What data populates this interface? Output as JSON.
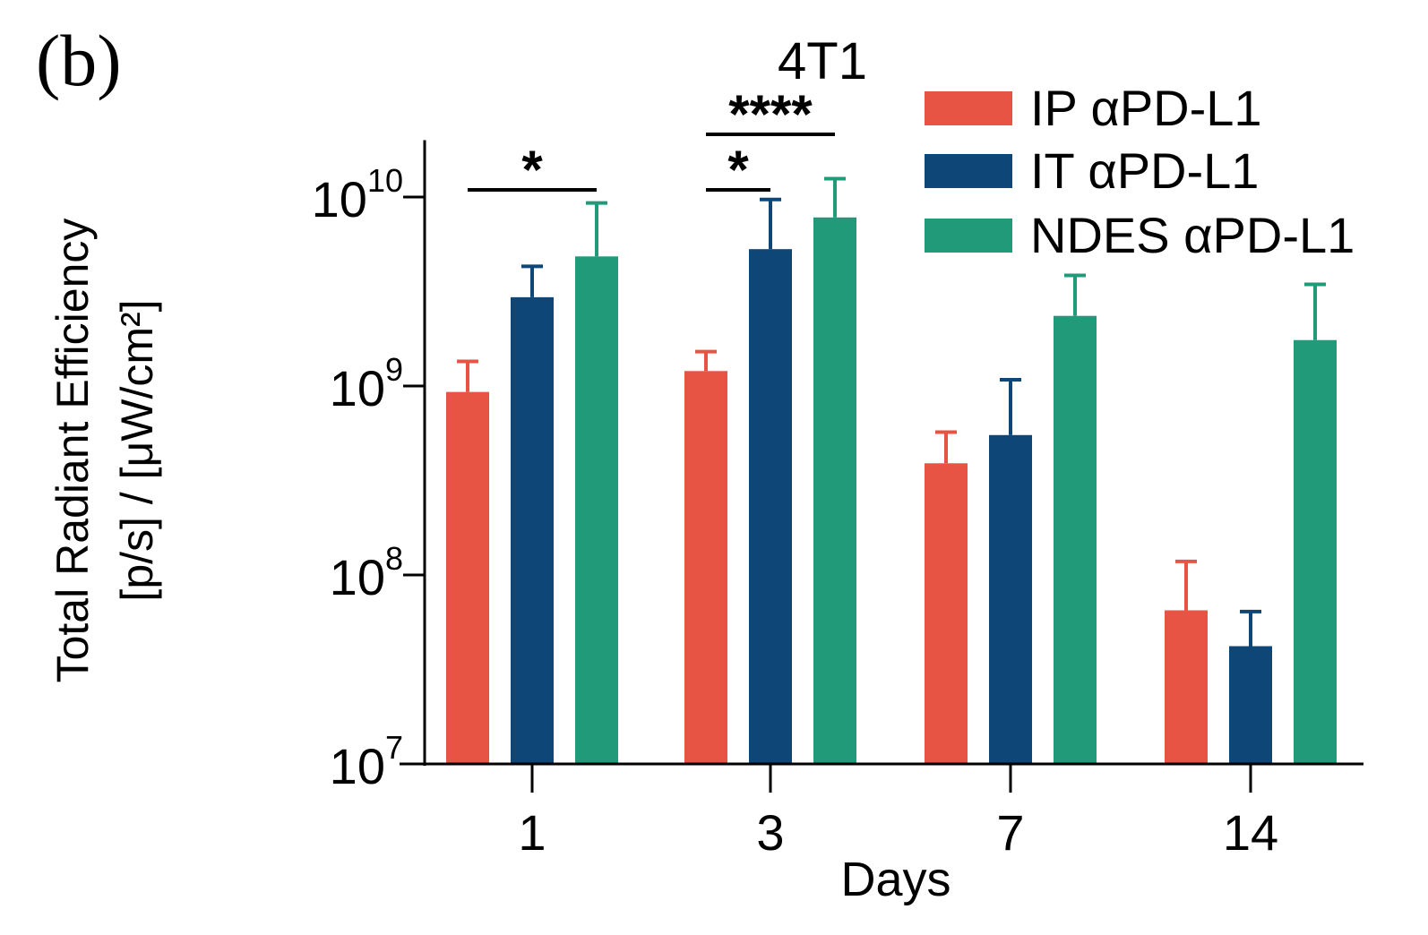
{
  "panel_label": "(b)",
  "chart_data": {
    "type": "bar",
    "title": "4T1",
    "xlabel": "Days",
    "ylabel_line1": "Total Radiant Efficiency",
    "ylabel_line2": "[p/s] / [μW/cm²]",
    "yscale": "log",
    "ylim": [
      10000000,
      20000000000
    ],
    "y_ticks": [
      {
        "value": 10000000,
        "base": "10",
        "exp": "7"
      },
      {
        "value": 100000000,
        "base": "10",
        "exp": "8"
      },
      {
        "value": 1000000000,
        "base": "10",
        "exp": "9"
      },
      {
        "value": 10000000000,
        "base": "10",
        "exp": "10"
      }
    ],
    "categories": [
      "1",
      "3",
      "7",
      "14"
    ],
    "series": [
      {
        "name": "IP αPD-L1",
        "color": "#e85443",
        "values": [
          930000000,
          1200000000,
          390000000,
          65000000
        ],
        "error_upper": [
          1350000000,
          1520000000,
          570000000,
          118000000
        ]
      },
      {
        "name": "IT αPD-L1",
        "color": "#0e4678",
        "values": [
          2950000000,
          5300000000,
          550000000,
          42000000
        ],
        "error_upper": [
          4300000000,
          9700000000,
          1080000000,
          64000000
        ]
      },
      {
        "name": "NDES αPD-L1",
        "color": "#219a7a",
        "values": [
          4850000000,
          7800000000,
          2350000000,
          1750000000
        ],
        "error_upper": [
          9300000000,
          12500000000,
          3850000000,
          3450000000
        ]
      }
    ],
    "legend_position": "top-right",
    "significance": [
      {
        "label": "*",
        "category": "1",
        "from_series": 0,
        "to_series": 2
      },
      {
        "label": "*",
        "category": "3",
        "from_series": 0,
        "to_series": 1
      },
      {
        "label": "****",
        "category": "3",
        "from_series": 0,
        "to_series": 2
      }
    ]
  }
}
